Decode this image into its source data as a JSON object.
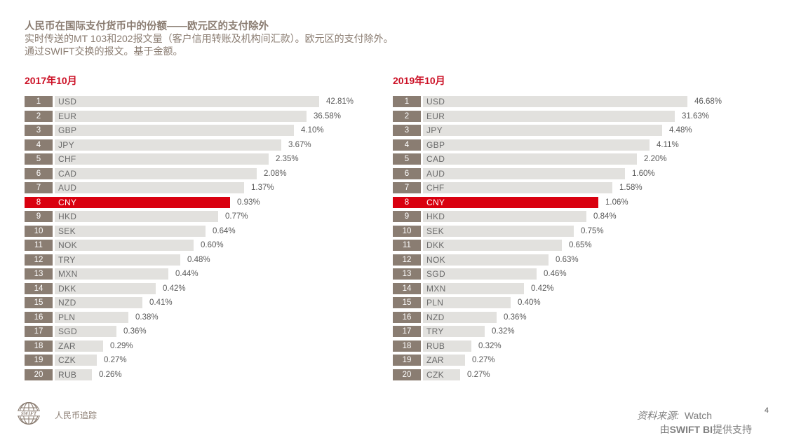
{
  "header": {
    "title": "人民币在国际支付货币中的份额——欧元区的支付除外",
    "subtitle_line1": "实时传送的MT 103和202报文量（客户信用转账及机构间汇款）。欧元区的支付除外。",
    "subtitle_line2": "通过SWIFT交换的报文。基于金额。"
  },
  "chart_data": [
    {
      "type": "bar",
      "orientation": "horizontal",
      "title": "2017年10月",
      "unit": "%",
      "categories": [
        "USD",
        "EUR",
        "GBP",
        "JPY",
        "CHF",
        "CAD",
        "AUD",
        "CNY",
        "HKD",
        "SEK",
        "NOK",
        "TRY",
        "MXN",
        "DKK",
        "NZD",
        "PLN",
        "SGD",
        "ZAR",
        "CZK",
        "RUB"
      ],
      "values": [
        42.81,
        36.58,
        4.1,
        3.67,
        2.35,
        2.08,
        1.37,
        0.93,
        0.77,
        0.64,
        0.6,
        0.48,
        0.44,
        0.42,
        0.41,
        0.38,
        0.36,
        0.29,
        0.27,
        0.26
      ],
      "highlight_category": "CNY",
      "legend_position": "none",
      "grid": false,
      "note": "bar length reflects rank order (1-20), not proportional to value; each row shows rank badge, currency code and data label"
    },
    {
      "type": "bar",
      "orientation": "horizontal",
      "title": "2019年10月",
      "unit": "%",
      "categories": [
        "USD",
        "EUR",
        "JPY",
        "GBP",
        "CAD",
        "AUD",
        "CHF",
        "CNY",
        "HKD",
        "SEK",
        "DKK",
        "NOK",
        "SGD",
        "MXN",
        "PLN",
        "NZD",
        "TRY",
        "RUB",
        "ZAR",
        "CZK"
      ],
      "values": [
        46.68,
        31.63,
        4.48,
        4.11,
        2.2,
        1.6,
        1.58,
        1.06,
        0.84,
        0.75,
        0.65,
        0.63,
        0.46,
        0.42,
        0.4,
        0.36,
        0.32,
        0.32,
        0.27,
        0.27
      ],
      "highlight_category": "CNY",
      "legend_position": "none",
      "grid": false,
      "note": "bar length reflects rank order (1-20), not proportional to value"
    }
  ],
  "footer": {
    "logo_name": "swift-globe-logo",
    "brand": "人民币追踪",
    "source_label": "资料来源:",
    "source_value": "Watch",
    "powered_prefix": "由",
    "powered_bold": "SWIFT BI",
    "powered_suffix": "提供支持",
    "page_number": "4"
  },
  "colors": {
    "accent_red": "#cc1126",
    "bar_red": "#d9000f",
    "rank_badge_bg": "#8a7d72",
    "bar_bg": "#e2e1de",
    "title_text": "#8a7c71",
    "value_text": "#595959",
    "code_text": "#6b6b6b",
    "footer_text": "#7f7f7f"
  }
}
